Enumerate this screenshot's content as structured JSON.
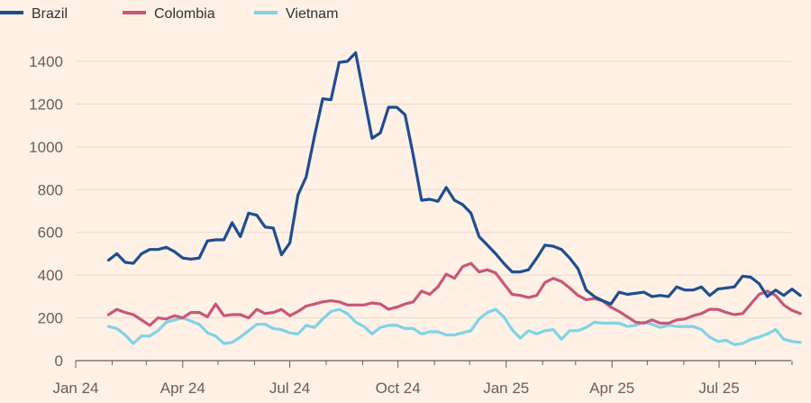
{
  "chart_data": {
    "type": "line",
    "title": "",
    "xlabel": "",
    "ylabel": "",
    "ylim": [
      0,
      1500
    ],
    "yticks": [
      0,
      200,
      400,
      600,
      800,
      1000,
      1200,
      1400
    ],
    "xticks": [
      "Jan 24",
      "Apr 24",
      "Jul 24",
      "Oct 24",
      "Jan 25",
      "Apr 25",
      "Jul 25"
    ],
    "grid": "horizontal",
    "legend": "top-left",
    "x": [
      "2024-01-29",
      "2024-02-05",
      "2024-02-12",
      "2024-02-19",
      "2024-02-26",
      "2024-03-04",
      "2024-03-11",
      "2024-03-18",
      "2024-03-25",
      "2024-04-01",
      "2024-04-08",
      "2024-04-15",
      "2024-04-22",
      "2024-04-29",
      "2024-05-06",
      "2024-05-13",
      "2024-05-20",
      "2024-05-27",
      "2024-06-03",
      "2024-06-10",
      "2024-06-17",
      "2024-06-24",
      "2024-07-01",
      "2024-07-08",
      "2024-07-15",
      "2024-07-22",
      "2024-07-29",
      "2024-08-05",
      "2024-08-12",
      "2024-08-19",
      "2024-08-26",
      "2024-09-02",
      "2024-09-09",
      "2024-09-16",
      "2024-09-23",
      "2024-09-30",
      "2024-10-07",
      "2024-10-14",
      "2024-10-21",
      "2024-10-28",
      "2024-11-04",
      "2024-11-11",
      "2024-11-18",
      "2024-11-25",
      "2024-12-02",
      "2024-12-09",
      "2024-12-16",
      "2024-12-23",
      "2024-12-30",
      "2025-01-06",
      "2025-01-13",
      "2025-01-20",
      "2025-01-27",
      "2025-02-03",
      "2025-02-10",
      "2025-02-17",
      "2025-02-24",
      "2025-03-03",
      "2025-03-10",
      "2025-03-17",
      "2025-03-24",
      "2025-03-31",
      "2025-04-07",
      "2025-04-14",
      "2025-04-21",
      "2025-04-28",
      "2025-05-05",
      "2025-05-12",
      "2025-05-19",
      "2025-05-26",
      "2025-06-02",
      "2025-06-09",
      "2025-06-16",
      "2025-06-23",
      "2025-06-30",
      "2025-07-07",
      "2025-07-14",
      "2025-07-21",
      "2025-07-28",
      "2025-08-04",
      "2025-08-11",
      "2025-08-18",
      "2025-08-25",
      "2025-09-01",
      "2025-09-08"
    ],
    "series": [
      {
        "name": "Brazil",
        "color": "#1f4d91",
        "values": [
          470,
          500,
          460,
          455,
          500,
          520,
          520,
          530,
          510,
          480,
          475,
          480,
          560,
          565,
          565,
          645,
          580,
          690,
          680,
          625,
          620,
          495,
          550,
          775,
          860,
          1050,
          1225,
          1220,
          1395,
          1400,
          1440,
          1240,
          1040,
          1065,
          1185,
          1185,
          1150,
          960,
          750,
          755,
          745,
          810,
          750,
          730,
          690,
          580,
          540,
          500,
          455,
          415,
          415,
          425,
          480,
          540,
          535,
          520,
          480,
          430,
          330,
          300,
          280,
          265,
          320,
          310,
          315,
          320,
          300,
          305,
          300,
          345,
          330,
          330,
          345,
          305,
          335,
          340,
          345,
          395,
          390,
          360,
          300,
          330,
          305,
          335,
          305
        ]
      },
      {
        "name": "Colombia",
        "color": "#c8577b",
        "values": [
          215,
          240,
          225,
          215,
          190,
          165,
          200,
          195,
          210,
          200,
          225,
          225,
          205,
          265,
          210,
          215,
          215,
          200,
          240,
          220,
          225,
          240,
          210,
          230,
          255,
          265,
          275,
          280,
          275,
          260,
          260,
          260,
          270,
          265,
          240,
          250,
          265,
          275,
          325,
          310,
          345,
          405,
          385,
          440,
          455,
          415,
          425,
          410,
          360,
          310,
          305,
          295,
          305,
          365,
          385,
          370,
          340,
          305,
          285,
          290,
          280,
          250,
          230,
          205,
          180,
          175,
          190,
          175,
          175,
          190,
          195,
          210,
          220,
          240,
          240,
          225,
          215,
          220,
          265,
          310,
          325,
          305,
          260,
          235,
          220
        ]
      },
      {
        "name": "Vietnam",
        "color": "#7fd3e6",
        "values": [
          160,
          150,
          120,
          80,
          115,
          115,
          140,
          180,
          190,
          200,
          185,
          170,
          130,
          115,
          80,
          85,
          110,
          140,
          170,
          170,
          150,
          145,
          130,
          125,
          165,
          155,
          195,
          230,
          240,
          220,
          180,
          160,
          125,
          155,
          165,
          165,
          150,
          150,
          125,
          135,
          135,
          120,
          120,
          130,
          140,
          195,
          225,
          240,
          205,
          145,
          105,
          140,
          125,
          140,
          145,
          100,
          140,
          140,
          155,
          180,
          175,
          175,
          175,
          160,
          165,
          180,
          170,
          155,
          165,
          160,
          160,
          160,
          145,
          110,
          90,
          95,
          75,
          80,
          100,
          110,
          125,
          145,
          100,
          90,
          85
        ]
      }
    ]
  }
}
